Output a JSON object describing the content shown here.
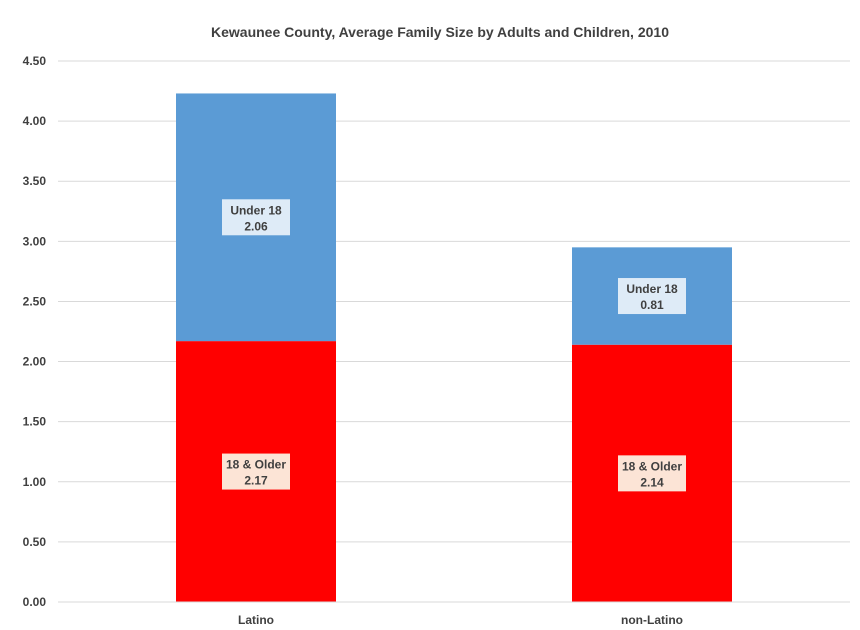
{
  "chart_data": {
    "type": "bar",
    "stacked": true,
    "title": "Kewaunee County, Average Family Size by Adults and Children, 2010",
    "categories": [
      "Latino",
      "non-Latino"
    ],
    "series": [
      {
        "name": "18 & Older",
        "values": [
          2.17,
          2.14
        ],
        "labels": [
          "2.17",
          "2.14"
        ],
        "color": "#ff0000",
        "label_bg": "#fce4d6"
      },
      {
        "name": "Under 18",
        "values": [
          2.06,
          0.81
        ],
        "labels": [
          "2.06",
          "0.81"
        ],
        "color": "#5b9bd5",
        "label_bg": "#deebf7"
      }
    ],
    "ylim": [
      0,
      4.5
    ],
    "yticks": [
      "0.00",
      "0.50",
      "1.00",
      "1.50",
      "2.00",
      "2.50",
      "3.00",
      "3.50",
      "4.00",
      "4.50"
    ],
    "grid": true,
    "legend": "none",
    "gridline_color": "#d9d9d9"
  }
}
